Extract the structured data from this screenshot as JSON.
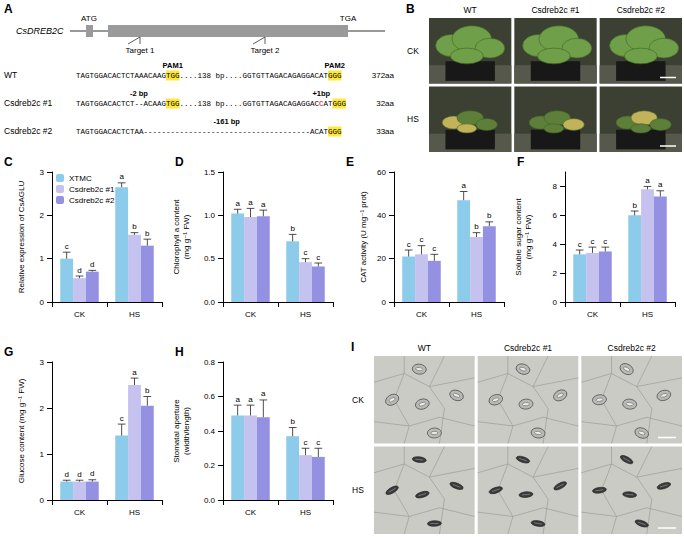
{
  "diagram": {
    "panel": "A",
    "gene": "CsDREB2C",
    "start_codon": "ATG",
    "stop_codon": "TGA",
    "targets": [
      "Target 1",
      "Target 2"
    ],
    "rows": [
      {
        "label": "WT",
        "protein": "372aa",
        "segments": [
          {
            "text": "TAGTGGACACTCTAAACAAG"
          },
          {
            "text": "TGG",
            "pam": true,
            "note": "PAM1"
          },
          {
            "text": "....138 bp...."
          },
          {
            "text": "GGTGTTAGACAGAGGACAT"
          },
          {
            "text": "GGG",
            "pam": true,
            "note": "PAM2"
          }
        ]
      },
      {
        "label": "Csdreb2c #1",
        "protein": "32aa",
        "segments": [
          {
            "text": "TAGTGGACACTCT"
          },
          {
            "text": "--",
            "note": "-2 bp"
          },
          {
            "text": "ACAAG"
          },
          {
            "text": "TGG",
            "pam": true
          },
          {
            "text": "....138 bp...."
          },
          {
            "text": "GGTGTTAGACAGAGGAC"
          },
          {
            "text": "C",
            "inserted": true,
            "note": "+1bp"
          },
          {
            "text": "AT"
          },
          {
            "text": "GGG",
            "pam": true
          }
        ]
      },
      {
        "label": "Csdreb2c #2",
        "protein": "33aa",
        "segments": [
          {
            "text": "TAGTGGACACTCTAA"
          },
          {
            "text": "-------------------------------------",
            "note": "-161 bp"
          },
          {
            "text": "ACAT"
          },
          {
            "text": "GGG",
            "pam": true
          }
        ]
      }
    ]
  },
  "photos": [
    {
      "panel": "B",
      "type": "plant photo",
      "columns": [
        "WT",
        "Csdreb2c #1",
        "Csdreb2c #2"
      ],
      "rows": [
        "CK",
        "HS"
      ]
    },
    {
      "panel": "I",
      "type": "micrograph",
      "columns": [
        "WT",
        "Csdreb2c #1",
        "Csdreb2c #2"
      ],
      "rows": [
        "CK",
        "HS"
      ]
    }
  ],
  "chart_data": [
    {
      "panel": "C",
      "type": "bar",
      "y_label": "Relative expression of CsAGLU",
      "categories": [
        "CK",
        "HS"
      ],
      "ylim": [
        0,
        3
      ],
      "yticks": [
        0,
        1,
        2,
        3
      ],
      "grid": false,
      "legend": "upper left",
      "series": [
        {
          "name": "XTMC",
          "color": "#8ccbe9",
          "values": [
            1.0,
            2.65
          ],
          "errors": [
            0.15,
            0.1
          ],
          "letters": [
            "c",
            "a"
          ]
        },
        {
          "name": "Csdreb2c #1",
          "color": "#c6c2f0",
          "values": [
            0.55,
            1.55
          ],
          "errors": [
            0.05,
            0.05
          ],
          "letters": [
            "d",
            "b"
          ]
        },
        {
          "name": "Csdreb2c #2",
          "color": "#9490e2",
          "values": [
            0.7,
            1.3
          ],
          "errors": [
            0.03,
            0.15
          ],
          "letters": [
            "d",
            "b"
          ]
        }
      ]
    },
    {
      "panel": "D",
      "type": "bar",
      "y_label": "Chlorophyll a content (mg g⁻¹ FW)",
      "categories": [
        "CK",
        "HS"
      ],
      "ylim": [
        0,
        1.5
      ],
      "yticks": [
        {
          "value": 0,
          "label": "0.0"
        },
        {
          "value": 0.5,
          "label": "0.5"
        },
        {
          "value": 1,
          "label": "1.0"
        },
        {
          "value": 1.5,
          "label": "1.5"
        }
      ],
      "grid": false,
      "series": [
        {
          "name": "XTMC",
          "color": "#8ccbe9",
          "values": [
            1.02,
            0.7
          ],
          "errors": [
            0.05,
            0.08
          ],
          "letters": [
            "a",
            "b"
          ]
        },
        {
          "name": "Csdreb2c #1",
          "color": "#c6c2f0",
          "values": [
            0.98,
            0.46
          ],
          "errors": [
            0.1,
            0.04
          ],
          "letters": [
            "a",
            "c"
          ]
        },
        {
          "name": "Csdreb2c #2",
          "color": "#9490e2",
          "values": [
            0.99,
            0.41
          ],
          "errors": [
            0.07,
            0.04
          ],
          "letters": [
            "a",
            "c"
          ]
        }
      ]
    },
    {
      "panel": "E",
      "type": "bar",
      "y_label": "CAT activity (U mg⁻¹ prot)",
      "categories": [
        "CK",
        "HS"
      ],
      "ylim": [
        0,
        60
      ],
      "yticks": [
        0,
        20,
        40,
        60
      ],
      "grid": false,
      "series": [
        {
          "name": "XTMC",
          "color": "#8ccbe9",
          "values": [
            21,
            47
          ],
          "errors": [
            3,
            4
          ],
          "letters": [
            "c",
            "a"
          ]
        },
        {
          "name": "Csdreb2c #1",
          "color": "#c6c2f0",
          "values": [
            22,
            30
          ],
          "errors": [
            4,
            2
          ],
          "letters": [
            "c",
            "b"
          ]
        },
        {
          "name": "Csdreb2c #2",
          "color": "#9490e2",
          "values": [
            19,
            35
          ],
          "errors": [
            3,
            2
          ],
          "letters": [
            "c",
            "b"
          ]
        }
      ]
    },
    {
      "panel": "F",
      "type": "bar",
      "y_label": "Soluble sugar content (mg g⁻¹ FW)",
      "categories": [
        "CK",
        "HS"
      ],
      "ylim": [
        0,
        9
      ],
      "yticks": [
        0,
        2,
        4,
        6,
        8
      ],
      "grid": false,
      "series": [
        {
          "name": "XTMC",
          "color": "#8ccbe9",
          "values": [
            3.3,
            6.0
          ],
          "errors": [
            0.3,
            0.3
          ],
          "letters": [
            "c",
            "b"
          ]
        },
        {
          "name": "Csdreb2c #1",
          "color": "#c6c2f0",
          "values": [
            3.4,
            7.8
          ],
          "errors": [
            0.4,
            0.2
          ],
          "letters": [
            "c",
            "a"
          ]
        },
        {
          "name": "Csdreb2c #2",
          "color": "#9490e2",
          "values": [
            3.5,
            7.3
          ],
          "errors": [
            0.3,
            0.4
          ],
          "letters": [
            "c",
            "a"
          ]
        }
      ]
    },
    {
      "panel": "G",
      "type": "bar",
      "y_label": "Glucose content (mg g⁻¹ FW)",
      "categories": [
        "CK",
        "HS"
      ],
      "ylim": [
        0,
        3
      ],
      "yticks": [
        0,
        1,
        2,
        3
      ],
      "grid": false,
      "series": [
        {
          "name": "XTMC",
          "color": "#8ccbe9",
          "values": [
            0.4,
            1.4
          ],
          "errors": [
            0.03,
            0.25
          ],
          "letters": [
            "d",
            "c"
          ]
        },
        {
          "name": "Csdreb2c #1",
          "color": "#c6c2f0",
          "values": [
            0.4,
            2.5
          ],
          "errors": [
            0.03,
            0.15
          ],
          "letters": [
            "d",
            "a"
          ]
        },
        {
          "name": "Csdreb2c #2",
          "color": "#9490e2",
          "values": [
            0.4,
            2.05
          ],
          "errors": [
            0.04,
            0.2
          ],
          "letters": [
            "d",
            "b"
          ]
        }
      ]
    },
    {
      "panel": "H",
      "type": "bar",
      "y_label": "Stomatal aperture (width/length)",
      "categories": [
        "CK",
        "HS"
      ],
      "ylim": [
        0,
        0.8
      ],
      "yticks": [
        {
          "value": 0,
          "label": "0.0"
        },
        {
          "value": 0.2,
          "label": "0.2"
        },
        {
          "value": 0.4,
          "label": "0.4"
        },
        {
          "value": 0.6,
          "label": "0.6"
        },
        {
          "value": 0.8,
          "label": "0.8"
        }
      ],
      "grid": false,
      "series": [
        {
          "name": "XTMC",
          "color": "#8ccbe9",
          "values": [
            0.49,
            0.37
          ],
          "errors": [
            0.06,
            0.05
          ],
          "letters": [
            "a",
            "b"
          ]
        },
        {
          "name": "Csdreb2c #1",
          "color": "#c6c2f0",
          "values": [
            0.49,
            0.26
          ],
          "errors": [
            0.06,
            0.04
          ],
          "letters": [
            "a",
            "c"
          ]
        },
        {
          "name": "Csdreb2c #2",
          "color": "#9490e2",
          "values": [
            0.48,
            0.25
          ],
          "errors": [
            0.1,
            0.05
          ],
          "letters": [
            "a",
            "c"
          ]
        }
      ]
    }
  ]
}
